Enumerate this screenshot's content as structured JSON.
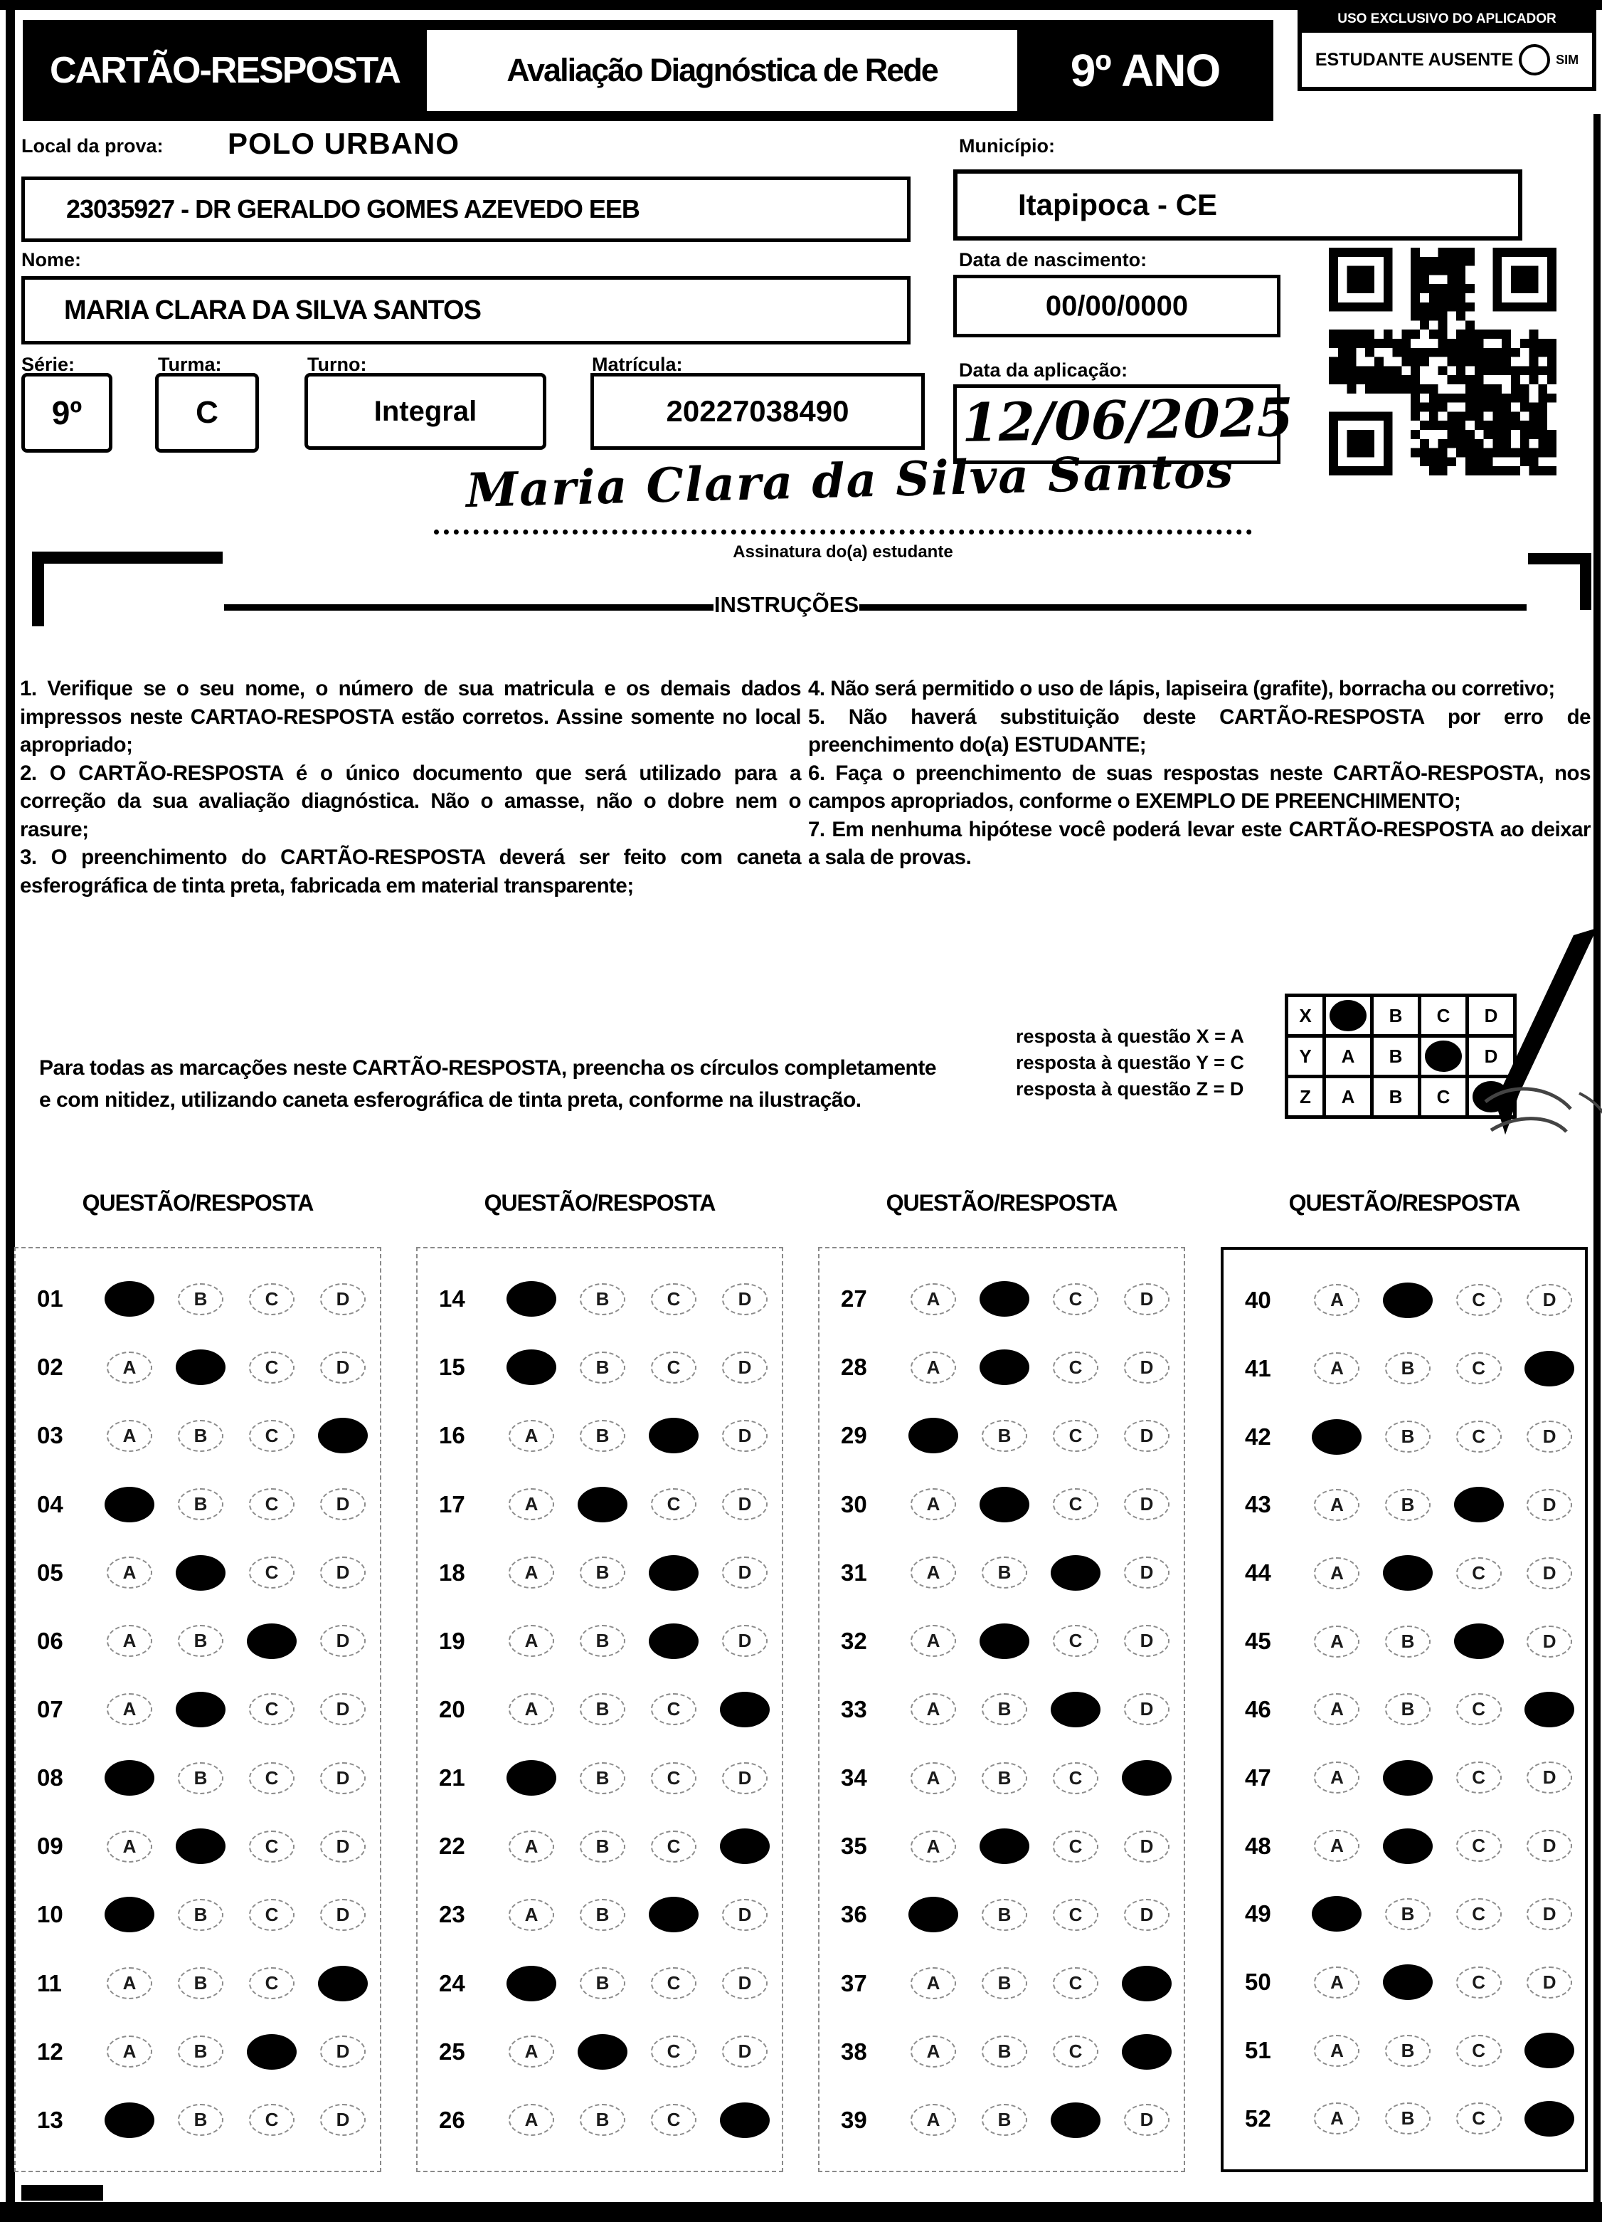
{
  "header": {
    "title": "CARTÃO-RESPOSTA",
    "subtitle": "Avaliação Diagnóstica de Rede",
    "grade": "9º ANO",
    "applicator_box": {
      "title": "USO EXCLUSIVO DO APLICADOR",
      "absent_label": "ESTUDANTE AUSENTE",
      "absent_option": "SIM"
    }
  },
  "form": {
    "local_label": "Local da prova:",
    "local_value": "POLO URBANO",
    "school": "23035927 - DR GERALDO GOMES AZEVEDO EEB",
    "municipio_label": "Município:",
    "municipio_value": "Itapipoca - CE",
    "nome_label": "Nome:",
    "nome_value": "MARIA CLARA DA SILVA SANTOS",
    "nascimento_label": "Data de nascimento:",
    "nascimento_value": "00/00/0000",
    "serie_label": "Série:",
    "serie_value": "9º",
    "turma_label": "Turma:",
    "turma_value": "C",
    "turno_label": "Turno:",
    "turno_value": "Integral",
    "matricula_label": "Matrícula:",
    "matricula_value": "20227038490",
    "aplicacao_label": "Data da aplicação:",
    "aplicacao_value": "12/06/2025",
    "signature_text": "Maria Clara da Silva Santos",
    "signature_caption": "Assinatura do(a) estudante"
  },
  "instructions": {
    "title": "INSTRUÇÕES",
    "left": [
      "1. Verifique se o seu nome, o número de sua matricula e os demais dados impressos neste CARTAO-RESPOSTA estão corretos. Assine somente no local apropriado;",
      "2. O CARTÃO-RESPOSTA é o único documento que será utilizado para a correção da sua avaliação diagnóstica. Não o amasse, não o dobre nem o rasure;",
      "3. O preenchimento do CARTÃO-RESPOSTA deverá ser feito com caneta esferográfica de tinta preta, fabricada em material transparente;"
    ],
    "right": [
      "4. Não será permitido o uso de lápis, lapiseira (grafite), borracha ou corretivo;",
      "5. Não haverá substituição deste CARTÃO-RESPOSTA por erro de preenchimento do(a) ESTUDANTE;",
      "6. Faça o preenchimento de suas respostas neste CARTÃO-RESPOSTA, nos campos apropriados, conforme o EXEMPLO DE PREENCHIMENTO;",
      "7. Em nenhuma hipótese você poderá levar este CARTÃO-RESPOSTA ao deixar a sala de provas."
    ]
  },
  "marking": {
    "paragraph": "Para todas as marcações neste CARTÃO-RESPOSTA, preencha os círculos completamente e com nitidez, utilizando caneta esferográfica de tinta preta, conforme na ilustração.",
    "examples": [
      "resposta à questão X = A",
      "resposta à questão Y = C",
      "resposta à questão Z = D"
    ],
    "example_grid": {
      "options": [
        "A",
        "B",
        "C",
        "D"
      ],
      "rows": [
        {
          "label": "X",
          "answer": "A"
        },
        {
          "label": "Y",
          "answer": "C"
        },
        {
          "label": "Z",
          "answer": "D"
        }
      ]
    }
  },
  "answers": {
    "column_header": "QUESTÃO/RESPOSTA",
    "options": [
      "A",
      "B",
      "C",
      "D"
    ],
    "columns": [
      [
        {
          "q": "01",
          "a": "A"
        },
        {
          "q": "02",
          "a": "B"
        },
        {
          "q": "03",
          "a": "D"
        },
        {
          "q": "04",
          "a": "A"
        },
        {
          "q": "05",
          "a": "B"
        },
        {
          "q": "06",
          "a": "C"
        },
        {
          "q": "07",
          "a": "B"
        },
        {
          "q": "08",
          "a": "A"
        },
        {
          "q": "09",
          "a": "B"
        },
        {
          "q": "10",
          "a": "A"
        },
        {
          "q": "11",
          "a": "D"
        },
        {
          "q": "12",
          "a": "C"
        },
        {
          "q": "13",
          "a": "A"
        }
      ],
      [
        {
          "q": "14",
          "a": "A"
        },
        {
          "q": "15",
          "a": "A"
        },
        {
          "q": "16",
          "a": "C"
        },
        {
          "q": "17",
          "a": "B"
        },
        {
          "q": "18",
          "a": "C"
        },
        {
          "q": "19",
          "a": "C"
        },
        {
          "q": "20",
          "a": "D"
        },
        {
          "q": "21",
          "a": "A"
        },
        {
          "q": "22",
          "a": "D"
        },
        {
          "q": "23",
          "a": "C"
        },
        {
          "q": "24",
          "a": "A"
        },
        {
          "q": "25",
          "a": "B"
        },
        {
          "q": "26",
          "a": "D"
        }
      ],
      [
        {
          "q": "27",
          "a": "B"
        },
        {
          "q": "28",
          "a": "B"
        },
        {
          "q": "29",
          "a": "A"
        },
        {
          "q": "30",
          "a": "B"
        },
        {
          "q": "31",
          "a": "C"
        },
        {
          "q": "32",
          "a": "B"
        },
        {
          "q": "33",
          "a": "C"
        },
        {
          "q": "34",
          "a": "D"
        },
        {
          "q": "35",
          "a": "B"
        },
        {
          "q": "36",
          "a": "A"
        },
        {
          "q": "37",
          "a": "D"
        },
        {
          "q": "38",
          "a": "D"
        },
        {
          "q": "39",
          "a": "C"
        }
      ],
      [
        {
          "q": "40",
          "a": "B"
        },
        {
          "q": "41",
          "a": "D"
        },
        {
          "q": "42",
          "a": "A"
        },
        {
          "q": "43",
          "a": "C"
        },
        {
          "q": "44",
          "a": "B"
        },
        {
          "q": "45",
          "a": "C"
        },
        {
          "q": "46",
          "a": "D"
        },
        {
          "q": "47",
          "a": "B"
        },
        {
          "q": "48",
          "a": "B"
        },
        {
          "q": "49",
          "a": "A"
        },
        {
          "q": "50",
          "a": "B"
        },
        {
          "q": "51",
          "a": "D"
        },
        {
          "q": "52",
          "a": "D"
        }
      ]
    ]
  }
}
